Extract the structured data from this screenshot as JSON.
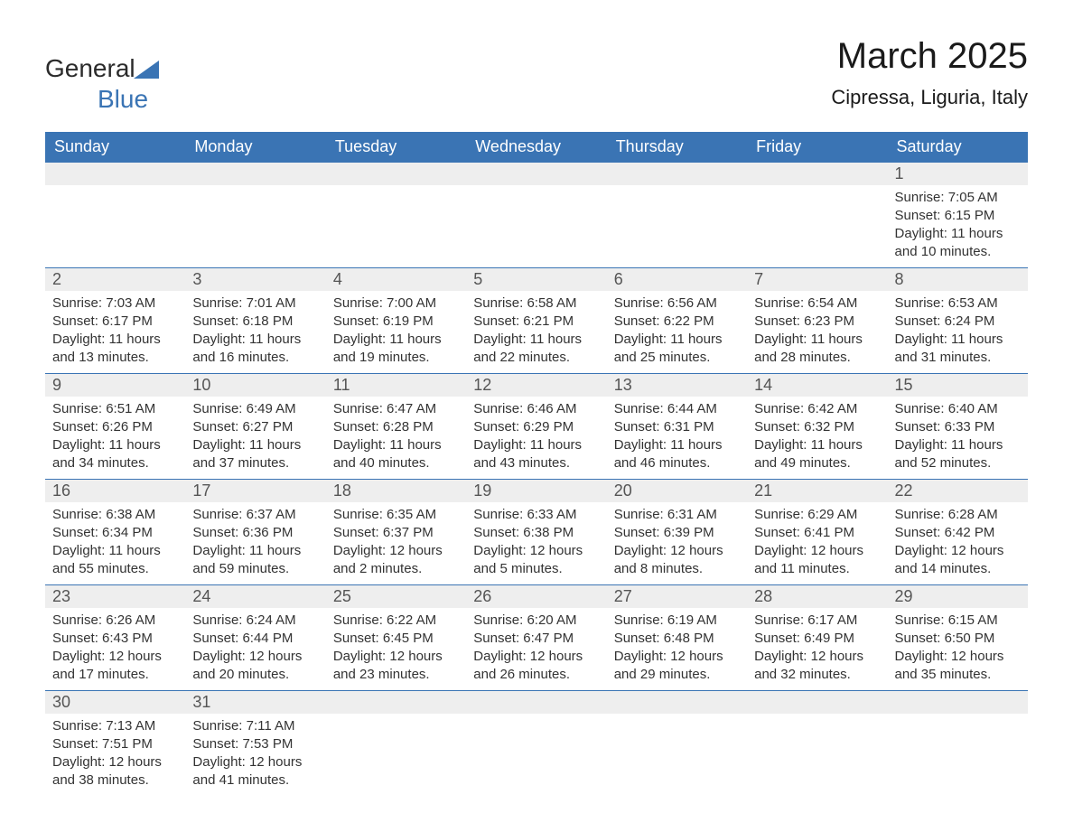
{
  "visual": {
    "header_bg": "#3a74b4",
    "header_text_color": "#ffffff",
    "daynum_bg": "#eeeeee",
    "daynum_color": "#555555",
    "body_text_color": "#333333",
    "row_border_color": "#3a74b4",
    "font_family": "Arial",
    "month_title_fontsize": 40,
    "location_fontsize": 22,
    "header_fontsize": 18,
    "daynum_fontsize": 18,
    "body_fontsize": 15,
    "logo_primary_color": "#2b2b2b",
    "logo_accent_color": "#3a74b4"
  },
  "logo": {
    "text_general": "General",
    "text_blue": "Blue"
  },
  "title": {
    "month": "March 2025",
    "location": "Cipressa, Liguria, Italy"
  },
  "weekdays": [
    "Sunday",
    "Monday",
    "Tuesday",
    "Wednesday",
    "Thursday",
    "Friday",
    "Saturday"
  ],
  "weeks": [
    [
      null,
      null,
      null,
      null,
      null,
      null,
      {
        "n": "1",
        "sr": "Sunrise: 7:05 AM",
        "ss": "Sunset: 6:15 PM",
        "d1": "Daylight: 11 hours",
        "d2": "and 10 minutes."
      }
    ],
    [
      {
        "n": "2",
        "sr": "Sunrise: 7:03 AM",
        "ss": "Sunset: 6:17 PM",
        "d1": "Daylight: 11 hours",
        "d2": "and 13 minutes."
      },
      {
        "n": "3",
        "sr": "Sunrise: 7:01 AM",
        "ss": "Sunset: 6:18 PM",
        "d1": "Daylight: 11 hours",
        "d2": "and 16 minutes."
      },
      {
        "n": "4",
        "sr": "Sunrise: 7:00 AM",
        "ss": "Sunset: 6:19 PM",
        "d1": "Daylight: 11 hours",
        "d2": "and 19 minutes."
      },
      {
        "n": "5",
        "sr": "Sunrise: 6:58 AM",
        "ss": "Sunset: 6:21 PM",
        "d1": "Daylight: 11 hours",
        "d2": "and 22 minutes."
      },
      {
        "n": "6",
        "sr": "Sunrise: 6:56 AM",
        "ss": "Sunset: 6:22 PM",
        "d1": "Daylight: 11 hours",
        "d2": "and 25 minutes."
      },
      {
        "n": "7",
        "sr": "Sunrise: 6:54 AM",
        "ss": "Sunset: 6:23 PM",
        "d1": "Daylight: 11 hours",
        "d2": "and 28 minutes."
      },
      {
        "n": "8",
        "sr": "Sunrise: 6:53 AM",
        "ss": "Sunset: 6:24 PM",
        "d1": "Daylight: 11 hours",
        "d2": "and 31 minutes."
      }
    ],
    [
      {
        "n": "9",
        "sr": "Sunrise: 6:51 AM",
        "ss": "Sunset: 6:26 PM",
        "d1": "Daylight: 11 hours",
        "d2": "and 34 minutes."
      },
      {
        "n": "10",
        "sr": "Sunrise: 6:49 AM",
        "ss": "Sunset: 6:27 PM",
        "d1": "Daylight: 11 hours",
        "d2": "and 37 minutes."
      },
      {
        "n": "11",
        "sr": "Sunrise: 6:47 AM",
        "ss": "Sunset: 6:28 PM",
        "d1": "Daylight: 11 hours",
        "d2": "and 40 minutes."
      },
      {
        "n": "12",
        "sr": "Sunrise: 6:46 AM",
        "ss": "Sunset: 6:29 PM",
        "d1": "Daylight: 11 hours",
        "d2": "and 43 minutes."
      },
      {
        "n": "13",
        "sr": "Sunrise: 6:44 AM",
        "ss": "Sunset: 6:31 PM",
        "d1": "Daylight: 11 hours",
        "d2": "and 46 minutes."
      },
      {
        "n": "14",
        "sr": "Sunrise: 6:42 AM",
        "ss": "Sunset: 6:32 PM",
        "d1": "Daylight: 11 hours",
        "d2": "and 49 minutes."
      },
      {
        "n": "15",
        "sr": "Sunrise: 6:40 AM",
        "ss": "Sunset: 6:33 PM",
        "d1": "Daylight: 11 hours",
        "d2": "and 52 minutes."
      }
    ],
    [
      {
        "n": "16",
        "sr": "Sunrise: 6:38 AM",
        "ss": "Sunset: 6:34 PM",
        "d1": "Daylight: 11 hours",
        "d2": "and 55 minutes."
      },
      {
        "n": "17",
        "sr": "Sunrise: 6:37 AM",
        "ss": "Sunset: 6:36 PM",
        "d1": "Daylight: 11 hours",
        "d2": "and 59 minutes."
      },
      {
        "n": "18",
        "sr": "Sunrise: 6:35 AM",
        "ss": "Sunset: 6:37 PM",
        "d1": "Daylight: 12 hours",
        "d2": "and 2 minutes."
      },
      {
        "n": "19",
        "sr": "Sunrise: 6:33 AM",
        "ss": "Sunset: 6:38 PM",
        "d1": "Daylight: 12 hours",
        "d2": "and 5 minutes."
      },
      {
        "n": "20",
        "sr": "Sunrise: 6:31 AM",
        "ss": "Sunset: 6:39 PM",
        "d1": "Daylight: 12 hours",
        "d2": "and 8 minutes."
      },
      {
        "n": "21",
        "sr": "Sunrise: 6:29 AM",
        "ss": "Sunset: 6:41 PM",
        "d1": "Daylight: 12 hours",
        "d2": "and 11 minutes."
      },
      {
        "n": "22",
        "sr": "Sunrise: 6:28 AM",
        "ss": "Sunset: 6:42 PM",
        "d1": "Daylight: 12 hours",
        "d2": "and 14 minutes."
      }
    ],
    [
      {
        "n": "23",
        "sr": "Sunrise: 6:26 AM",
        "ss": "Sunset: 6:43 PM",
        "d1": "Daylight: 12 hours",
        "d2": "and 17 minutes."
      },
      {
        "n": "24",
        "sr": "Sunrise: 6:24 AM",
        "ss": "Sunset: 6:44 PM",
        "d1": "Daylight: 12 hours",
        "d2": "and 20 minutes."
      },
      {
        "n": "25",
        "sr": "Sunrise: 6:22 AM",
        "ss": "Sunset: 6:45 PM",
        "d1": "Daylight: 12 hours",
        "d2": "and 23 minutes."
      },
      {
        "n": "26",
        "sr": "Sunrise: 6:20 AM",
        "ss": "Sunset: 6:47 PM",
        "d1": "Daylight: 12 hours",
        "d2": "and 26 minutes."
      },
      {
        "n": "27",
        "sr": "Sunrise: 6:19 AM",
        "ss": "Sunset: 6:48 PM",
        "d1": "Daylight: 12 hours",
        "d2": "and 29 minutes."
      },
      {
        "n": "28",
        "sr": "Sunrise: 6:17 AM",
        "ss": "Sunset: 6:49 PM",
        "d1": "Daylight: 12 hours",
        "d2": "and 32 minutes."
      },
      {
        "n": "29",
        "sr": "Sunrise: 6:15 AM",
        "ss": "Sunset: 6:50 PM",
        "d1": "Daylight: 12 hours",
        "d2": "and 35 minutes."
      }
    ],
    [
      {
        "n": "30",
        "sr": "Sunrise: 7:13 AM",
        "ss": "Sunset: 7:51 PM",
        "d1": "Daylight: 12 hours",
        "d2": "and 38 minutes."
      },
      {
        "n": "31",
        "sr": "Sunrise: 7:11 AM",
        "ss": "Sunset: 7:53 PM",
        "d1": "Daylight: 12 hours",
        "d2": "and 41 minutes."
      },
      null,
      null,
      null,
      null,
      null
    ]
  ]
}
